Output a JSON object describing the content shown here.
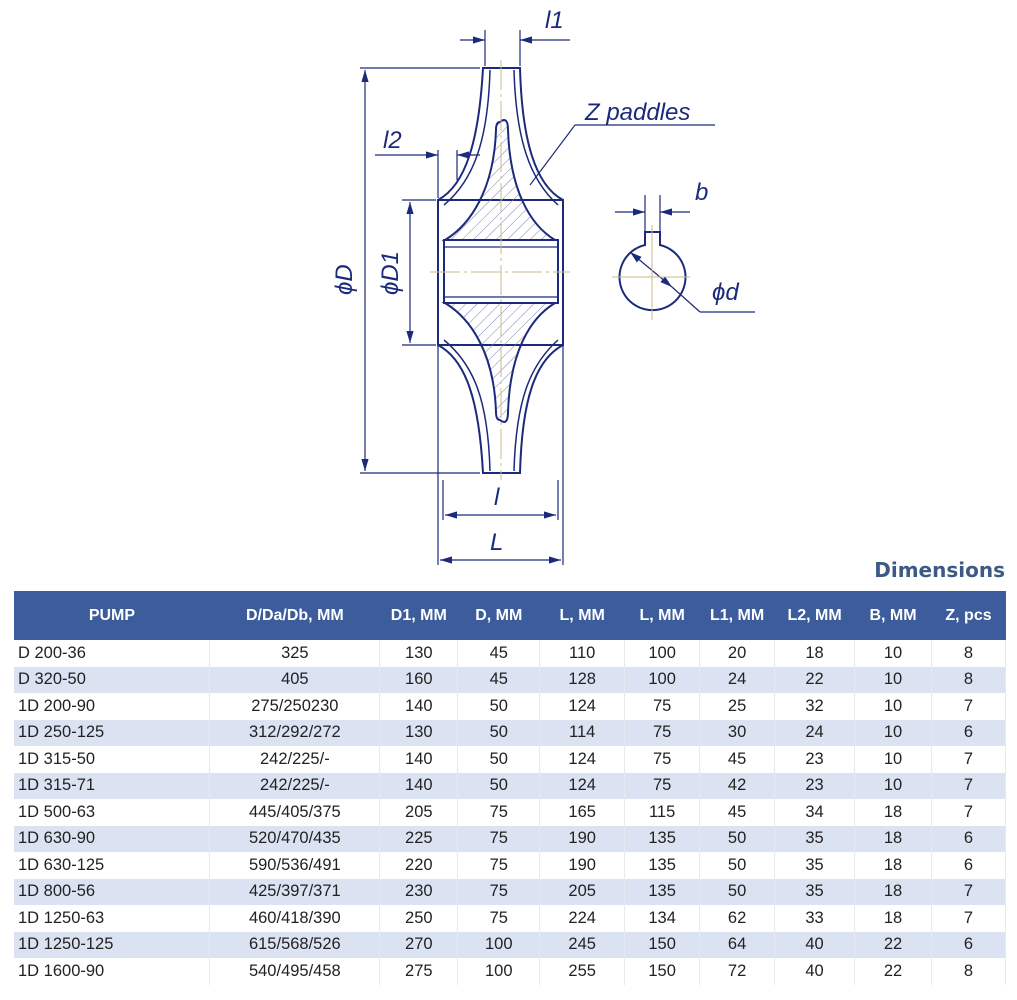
{
  "drawing": {
    "labels": {
      "l1": "l1",
      "l2": "l2",
      "z_paddles": "Z paddles",
      "b": "b",
      "phi_d": "ϕd",
      "phi_D": "ϕD",
      "phi_D1": "ϕD1",
      "l": "l",
      "L": "L"
    },
    "line_color": "#1b2a7a"
  },
  "table": {
    "title": "Dimensions",
    "header_color": "#3c5c9b",
    "columns": [
      "PUMP",
      "D/Da/Db, MM",
      "D1, MM",
      "D, MM",
      "L, MM",
      "L, MM",
      "L1, MM",
      "L2, MM",
      "B, MM",
      "Z, pcs"
    ],
    "rows": [
      [
        "D 200-36",
        "325",
        "130",
        "45",
        "110",
        "100",
        "20",
        "18",
        "10",
        "8"
      ],
      [
        "D 320-50",
        "405",
        "160",
        "45",
        "128",
        "100",
        "24",
        "22",
        "10",
        "8"
      ],
      [
        "1D 200-90",
        "275/250230",
        "140",
        "50",
        "124",
        "75",
        "25",
        "32",
        "10",
        "7"
      ],
      [
        "1D 250-125",
        "312/292/272",
        "130",
        "50",
        "114",
        "75",
        "30",
        "24",
        "10",
        "6"
      ],
      [
        "1D 315-50",
        "242/225/-",
        "140",
        "50",
        "124",
        "75",
        "45",
        "23",
        "10",
        "7"
      ],
      [
        "1D 315-71",
        "242/225/-",
        "140",
        "50",
        "124",
        "75",
        "42",
        "23",
        "10",
        "7"
      ],
      [
        "1D 500-63",
        "445/405/375",
        "205",
        "75",
        "165",
        "115",
        "45",
        "34",
        "18",
        "7"
      ],
      [
        "1D 630-90",
        "520/470/435",
        "225",
        "75",
        "190",
        "135",
        "50",
        "35",
        "18",
        "6"
      ],
      [
        "1D 630-125",
        "590/536/491",
        "220",
        "75",
        "190",
        "135",
        "50",
        "35",
        "18",
        "6"
      ],
      [
        "1D 800-56",
        "425/397/371",
        "230",
        "75",
        "205",
        "135",
        "50",
        "35",
        "18",
        "7"
      ],
      [
        "1D 1250-63",
        "460/418/390",
        "250",
        "75",
        "224",
        "134",
        "62",
        "33",
        "18",
        "7"
      ],
      [
        "1D 1250-125",
        "615/568/526",
        "270",
        "100",
        "245",
        "150",
        "64",
        "40",
        "22",
        "6"
      ],
      [
        "1D 1600-90",
        "540/495/458",
        "275",
        "100",
        "255",
        "150",
        "72",
        "40",
        "22",
        "8"
      ]
    ]
  }
}
